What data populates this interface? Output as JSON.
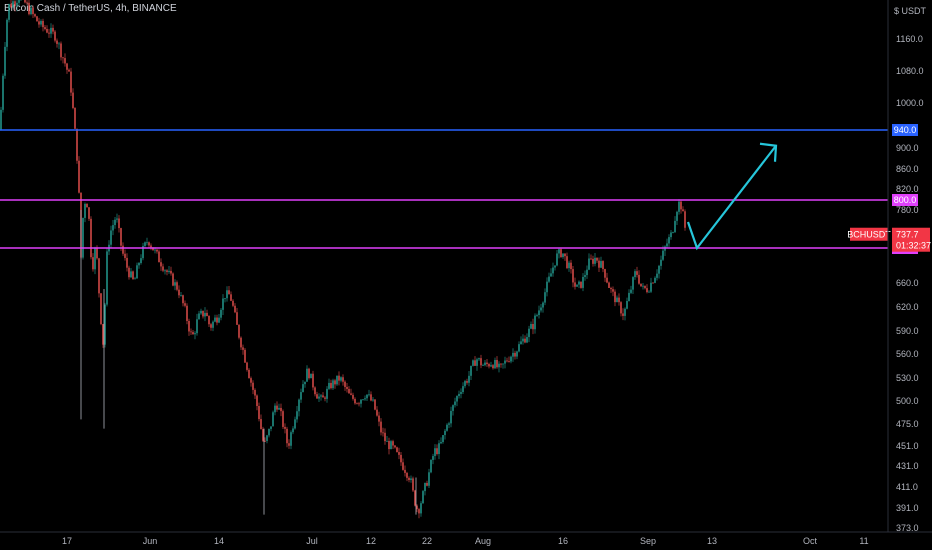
{
  "header": {
    "symbol": "Bitcoin Cash / TetherUS, 4h, BINANCE"
  },
  "chart_data": {
    "type": "candlestick",
    "currency": "USDT",
    "y_ticks": [
      "1160.0",
      "1080.0",
      "1000.0",
      "900.0",
      "860.0",
      "820.0",
      "780.0",
      "660.0",
      "620.0",
      "590.0",
      "560.0",
      "530.0",
      "500.0",
      "475.0",
      "451.0",
      "431.0",
      "411.0",
      "391.0",
      "373.0"
    ],
    "x_ticks": [
      "17",
      "Jun",
      "14",
      "Jul",
      "12",
      "22",
      "Aug",
      "16",
      "Sep",
      "13",
      "Oct",
      "11"
    ],
    "horizontal_levels": [
      {
        "label": "940.0",
        "value": 940,
        "color": "#2962ff"
      },
      {
        "label": "800.0",
        "value": 800,
        "color": "#e040fb"
      },
      {
        "label": "715.0",
        "value": 715,
        "color": "#e040fb"
      }
    ],
    "last_price": {
      "symbol": "BCHUSDT",
      "price": "737.7",
      "countdown": "01:32:37",
      "color": "#f23645"
    },
    "up_color": "#26a69a",
    "down_color": "#ef5350",
    "arrow_color": "#26c6da",
    "path_points": [
      [
        0,
        940
      ],
      [
        4,
        1120
      ],
      [
        8,
        1250
      ],
      [
        20,
        1280
      ],
      [
        40,
        1200
      ],
      [
        55,
        1170
      ],
      [
        65,
        1100
      ],
      [
        70,
        1060
      ],
      [
        74,
        960
      ],
      [
        78,
        860
      ],
      [
        81,
        700
      ],
      [
        84,
        800
      ],
      [
        88,
        790
      ],
      [
        92,
        680
      ],
      [
        96,
        720
      ],
      [
        100,
        620
      ],
      [
        104,
        560
      ],
      [
        106,
        690
      ],
      [
        110,
        740
      ],
      [
        116,
        770
      ],
      [
        122,
        710
      ],
      [
        128,
        680
      ],
      [
        134,
        660
      ],
      [
        140,
        700
      ],
      [
        148,
        730
      ],
      [
        156,
        705
      ],
      [
        162,
        690
      ],
      [
        170,
        670
      ],
      [
        178,
        650
      ],
      [
        186,
        610
      ],
      [
        192,
        580
      ],
      [
        198,
        605
      ],
      [
        205,
        615
      ],
      [
        210,
        595
      ],
      [
        218,
        610
      ],
      [
        225,
        640
      ],
      [
        230,
        640
      ],
      [
        236,
        600
      ],
      [
        244,
        560
      ],
      [
        250,
        530
      ],
      [
        258,
        490
      ],
      [
        264,
        450
      ],
      [
        270,
        470
      ],
      [
        276,
        500
      ],
      [
        282,
        480
      ],
      [
        288,
        450
      ],
      [
        296,
        490
      ],
      [
        302,
        520
      ],
      [
        308,
        540
      ],
      [
        316,
        510
      ],
      [
        322,
        500
      ],
      [
        330,
        520
      ],
      [
        340,
        530
      ],
      [
        350,
        505
      ],
      [
        358,
        500
      ],
      [
        366,
        510
      ],
      [
        374,
        495
      ],
      [
        380,
        470
      ],
      [
        386,
        455
      ],
      [
        392,
        450
      ],
      [
        398,
        440
      ],
      [
        404,
        430
      ],
      [
        410,
        420
      ],
      [
        414,
        400
      ],
      [
        418,
        388
      ],
      [
        422,
        400
      ],
      [
        428,
        420
      ],
      [
        434,
        445
      ],
      [
        440,
        450
      ],
      [
        446,
        470
      ],
      [
        452,
        490
      ],
      [
        460,
        515
      ],
      [
        468,
        530
      ],
      [
        476,
        555
      ],
      [
        484,
        545
      ],
      [
        492,
        550
      ],
      [
        500,
        540
      ],
      [
        508,
        555
      ],
      [
        516,
        565
      ],
      [
        524,
        580
      ],
      [
        532,
        595
      ],
      [
        540,
        620
      ],
      [
        548,
        660
      ],
      [
        556,
        700
      ],
      [
        562,
        710
      ],
      [
        570,
        680
      ],
      [
        576,
        650
      ],
      [
        582,
        660
      ],
      [
        588,
        690
      ],
      [
        596,
        700
      ],
      [
        604,
        680
      ],
      [
        610,
        650
      ],
      [
        618,
        625
      ],
      [
        624,
        610
      ],
      [
        630,
        645
      ],
      [
        636,
        680
      ],
      [
        642,
        650
      ],
      [
        648,
        650
      ],
      [
        654,
        670
      ],
      [
        660,
        690
      ],
      [
        666,
        720
      ],
      [
        672,
        740
      ],
      [
        676,
        780
      ],
      [
        680,
        798
      ],
      [
        684,
        760
      ],
      [
        686,
        740
      ]
    ],
    "wick_spikes": [
      {
        "x": 81,
        "low": 480,
        "high": 780
      },
      {
        "x": 104,
        "low": 470,
        "high": 650
      },
      {
        "x": 264,
        "low": 385,
        "high": 470
      },
      {
        "x": 416,
        "low": 385,
        "high": 420
      }
    ],
    "projection": {
      "from": [
        697,
        715
      ],
      "to": [
        776,
        905
      ]
    }
  }
}
